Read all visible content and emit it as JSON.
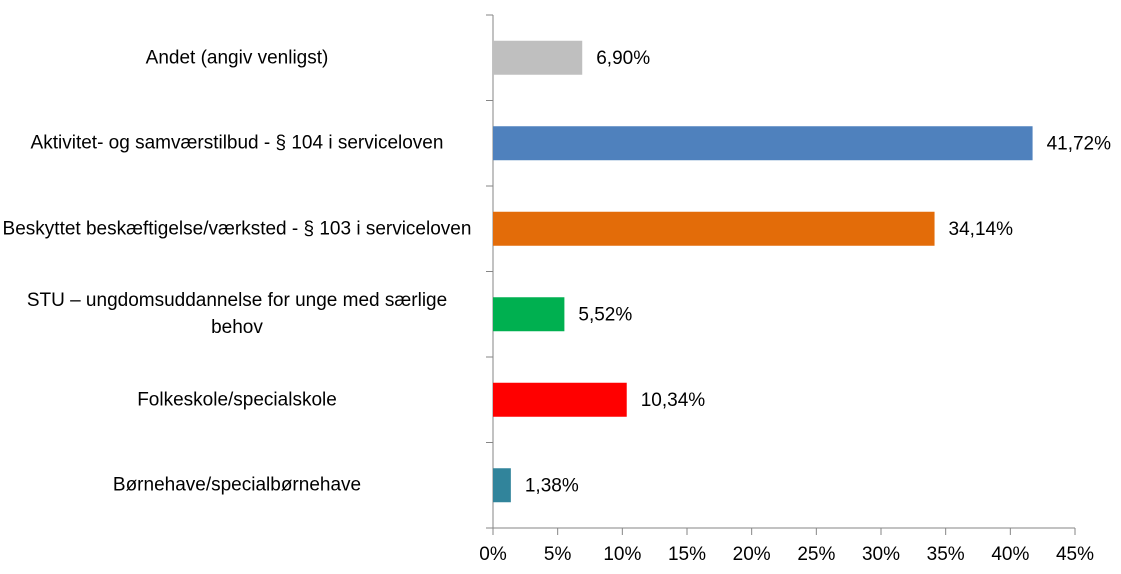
{
  "chart_data": {
    "type": "barh",
    "categories": [
      "Andet (angiv venligst)",
      "Aktivitet- og samværstilbud - § 104 i serviceloven",
      "Beskyttet beskæftigelse/værksted - § 103 i serviceloven",
      "STU – ungdomsuddannelse for unge med særlige behov",
      "Folkeskole/specialskole",
      "Børnehave/specialbørnehave"
    ],
    "values": [
      6.9,
      41.72,
      34.14,
      5.52,
      10.34,
      1.38
    ],
    "value_labels": [
      "6,90%",
      "41,72%",
      "34,14%",
      "5,52%",
      "10,34%",
      "1,38%"
    ],
    "colors": [
      "#bfbfbf",
      "#4f81bd",
      "#e36c09",
      "#00b050",
      "#ff0000",
      "#31849b"
    ],
    "xlim": [
      0,
      45
    ],
    "xticks": [
      {
        "value": 0,
        "label": "0%"
      },
      {
        "value": 5,
        "label": "5%"
      },
      {
        "value": 10,
        "label": "10%"
      },
      {
        "value": 15,
        "label": "15%"
      },
      {
        "value": 20,
        "label": "20%"
      },
      {
        "value": 25,
        "label": "25%"
      },
      {
        "value": 30,
        "label": "30%"
      },
      {
        "value": 35,
        "label": "35%"
      },
      {
        "value": 40,
        "label": "40%"
      },
      {
        "value": 45,
        "label": "45%"
      }
    ],
    "grid": false
  }
}
